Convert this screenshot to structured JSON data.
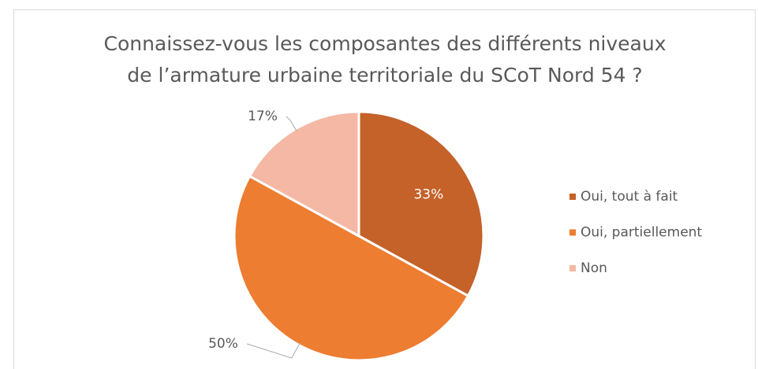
{
  "chart_data": {
    "type": "pie",
    "title": [
      "Connaissez-vous les composantes des différents niveaux",
      "de l’armature urbaine territoriale du SCoT Nord 54 ?"
    ],
    "categories": [
      "Oui, tout à fait",
      "Oui, partiellement",
      "Non"
    ],
    "values": [
      33,
      50,
      17
    ],
    "value_labels": [
      "33%",
      "50%",
      "17%"
    ],
    "colors": [
      "#c4622a",
      "#ed7d31",
      "#f4b8a4"
    ],
    "legend": "right"
  }
}
